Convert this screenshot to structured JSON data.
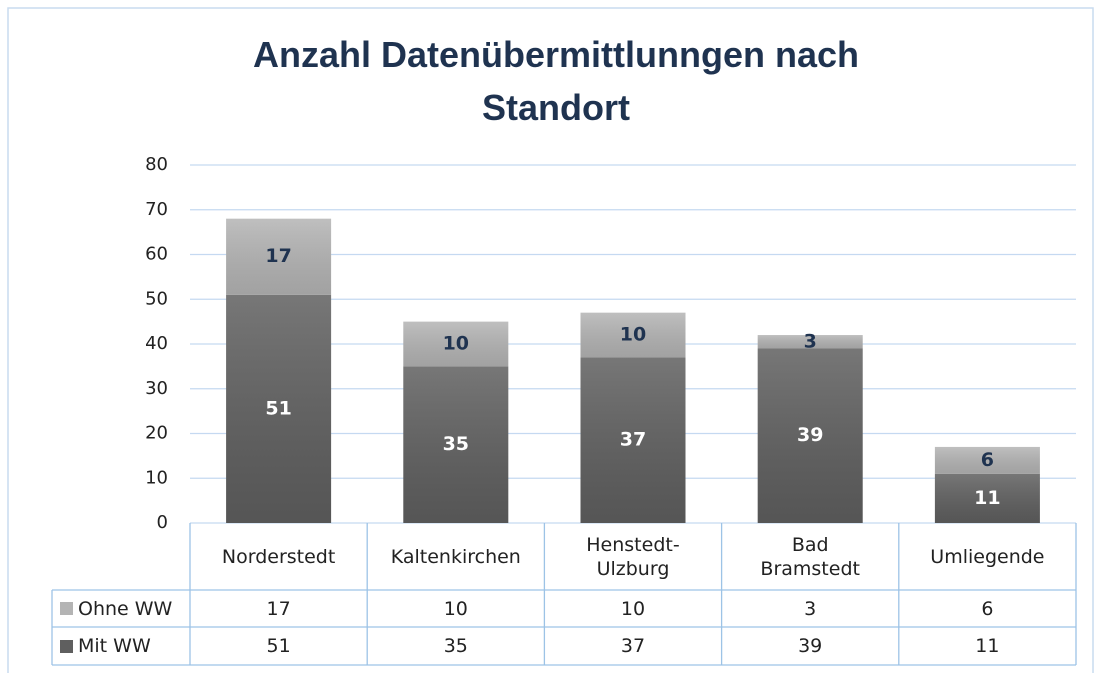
{
  "chart_data": {
    "type": "stacked_bar",
    "title": "Anzahl Datenübermittlunngen nach Standort",
    "categories": [
      "Norderstedt",
      "Kaltenkirchen",
      "Henstedt-Ulzburg",
      "Bad Bramstedt",
      "Umliegende"
    ],
    "series": [
      {
        "name": "Ohne WW",
        "color": "#b4b4b4",
        "values": [
          17,
          10,
          10,
          3,
          6
        ]
      },
      {
        "name": "Mit WW",
        "color": "#5f5f5f",
        "values": [
          51,
          35,
          37,
          39,
          11
        ]
      }
    ],
    "ylim": [
      0,
      80
    ],
    "yticks": [
      0,
      10,
      20,
      30,
      40,
      50,
      60,
      70,
      80
    ],
    "grid": true,
    "legend": "table"
  }
}
